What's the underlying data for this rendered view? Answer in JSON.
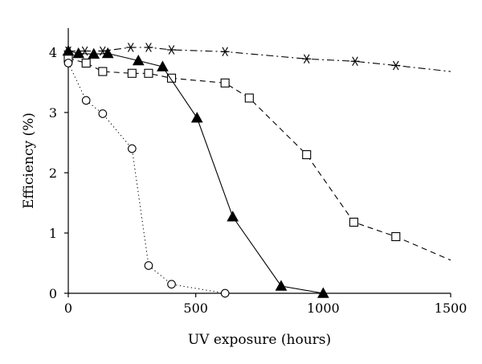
{
  "chart_data": {
    "type": "line",
    "xlabel": "UV exposure (hours)",
    "ylabel": "Efficiency (%)",
    "xlim": [
      0,
      1500
    ],
    "ylim": [
      0,
      4.4
    ],
    "xticks": [
      0,
      500,
      1000,
      1500
    ],
    "yticks": [
      0,
      1,
      2,
      3,
      4
    ],
    "grid": false,
    "series": [
      {
        "marker": "asterisk",
        "line_style": "dash-dot",
        "points": [
          [
            0,
            4.02
          ],
          [
            65,
            4.02
          ],
          [
            135,
            4.02
          ],
          [
            245,
            4.08
          ],
          [
            315,
            4.08
          ],
          [
            405,
            4.04
          ],
          [
            615,
            4.01
          ],
          [
            935,
            3.89
          ],
          [
            1125,
            3.85
          ],
          [
            1285,
            3.78
          ],
          [
            1500,
            3.68
          ]
        ],
        "marker_count": 10
      },
      {
        "marker": "open-square",
        "line_style": "dashed",
        "points": [
          [
            0,
            3.9
          ],
          [
            70,
            3.82
          ],
          [
            135,
            3.68
          ],
          [
            250,
            3.65
          ],
          [
            315,
            3.65
          ],
          [
            405,
            3.57
          ],
          [
            615,
            3.49
          ],
          [
            710,
            3.24
          ],
          [
            935,
            2.3
          ],
          [
            1120,
            1.18
          ],
          [
            1285,
            0.94
          ],
          [
            1500,
            0.55
          ]
        ],
        "marker_count": 11
      },
      {
        "marker": "filled-triangle",
        "line_style": "solid",
        "points": [
          [
            0,
            4.02
          ],
          [
            40,
            3.98
          ],
          [
            100,
            3.97
          ],
          [
            155,
            3.98
          ],
          [
            275,
            3.86
          ],
          [
            370,
            3.76
          ],
          [
            505,
            2.91
          ],
          [
            645,
            1.27
          ],
          [
            835,
            0.12
          ],
          [
            1000,
            0.0
          ]
        ],
        "marker_count": 10
      },
      {
        "marker": "open-circle",
        "line_style": "dotted",
        "points": [
          [
            0,
            3.82
          ],
          [
            70,
            3.2
          ],
          [
            135,
            2.98
          ],
          [
            250,
            2.4
          ],
          [
            315,
            0.46
          ],
          [
            405,
            0.15
          ],
          [
            615,
            0.0
          ]
        ],
        "marker_count": 7
      }
    ]
  }
}
